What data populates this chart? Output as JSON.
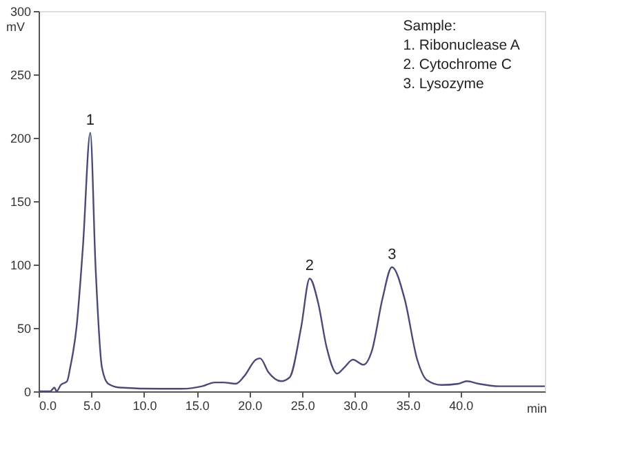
{
  "chart_data": {
    "type": "line",
    "xlabel": "min",
    "ylabel": "mV",
    "x": [
      0,
      1.1,
      1.5,
      1.7,
      2.1,
      2.7,
      3.0,
      3.6,
      4.2,
      4.9,
      5.4,
      6.0,
      6.6,
      7.7,
      11.6,
      13.6,
      15.5,
      16.7,
      17.5,
      18.7,
      19.5,
      20.6,
      21.0,
      21.8,
      23.0,
      23.8,
      24.9,
      25.7,
      26.5,
      27.3,
      28.3,
      29.0,
      29.8,
      30.8,
      31.6,
      32.6,
      33.5,
      34.7,
      35.9,
      36.8,
      38.2,
      39.8,
      40.6,
      41.7,
      43.7,
      48
    ],
    "series": [
      {
        "color": "#4a4a7a",
        "values": [
          0,
          0,
          3,
          0,
          5,
          8,
          19,
          51,
          114,
          204,
          98,
          19,
          6,
          3,
          2,
          2,
          4,
          7,
          7,
          6,
          12,
          25,
          26,
          15,
          8,
          11,
          51,
          89,
          70,
          35,
          14,
          19,
          25,
          21,
          32,
          73,
          98,
          73,
          25,
          9,
          5,
          6,
          8,
          6,
          4,
          4
        ]
      }
    ],
    "xlim": [
      0,
      48
    ],
    "ylim": [
      0,
      300
    ],
    "xticks": [
      {
        "value": 0,
        "label": "0.0"
      },
      {
        "value": 5,
        "label": "5.0"
      },
      {
        "value": 10,
        "label": "10.0"
      },
      {
        "value": 15,
        "label": "15.0"
      },
      {
        "value": 20,
        "label": "20.0"
      },
      {
        "value": 25,
        "label": "25.0"
      },
      {
        "value": 30,
        "label": "30.0"
      },
      {
        "value": 35,
        "label": "35.0"
      },
      {
        "value": 40,
        "label": "40.0"
      }
    ],
    "yticks": [
      0,
      50,
      100,
      150,
      200,
      250,
      300
    ],
    "grid": false,
    "marker": "none",
    "line_style": "solid",
    "annotations": [
      "Sample:",
      "1. Ribonuclease A",
      "2. Cytochrome C",
      "3. Lysozyme",
      {
        "text": "1",
        "x": 4.9,
        "y": 204
      },
      {
        "text": "2",
        "x": 25.7,
        "y": 89
      },
      {
        "text": "3",
        "x": 33.5,
        "y": 98
      }
    ]
  }
}
